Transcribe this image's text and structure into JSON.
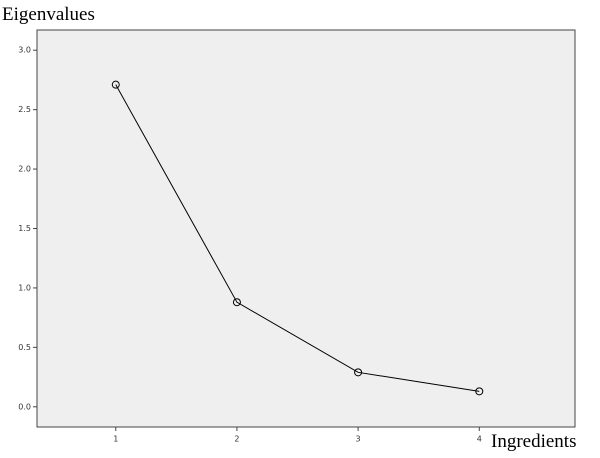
{
  "chart_data": {
    "type": "line",
    "y_label": "Eigenvalues",
    "x_label": "Ingredients",
    "x": [
      1,
      2,
      3,
      4
    ],
    "series": [
      {
        "color": "#000000",
        "values": [
          2.71,
          0.88,
          0.29,
          0.13
        ]
      }
    ],
    "xlim": [
      0.35,
      4.79
    ],
    "ylim": [
      -0.17,
      3.17
    ],
    "xticks": [
      1,
      2,
      3,
      4
    ],
    "yticks": [
      {
        "value": 0,
        "label": "0.0"
      },
      0.5,
      {
        "value": 1,
        "label": "1.0"
      },
      1.5,
      {
        "value": 2,
        "label": "2.0"
      },
      2.5,
      {
        "value": 3,
        "label": "3.0"
      }
    ],
    "background": "#efefef"
  }
}
